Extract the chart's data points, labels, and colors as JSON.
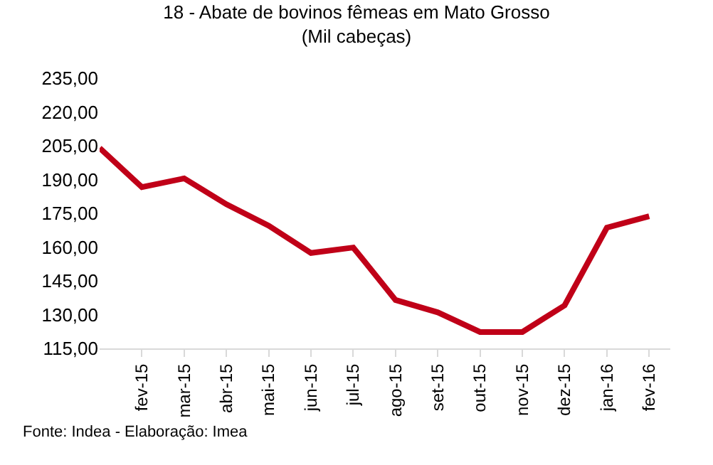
{
  "chart_data": {
    "type": "line",
    "title": "18 - Abate de bovinos fêmeas em Mato Grosso (Mil cabeças)",
    "categories": [
      null,
      "fev-15",
      "mar-15",
      "abr-15",
      "mai-15",
      "jun-15",
      "jul-15",
      "ago-15",
      "set-15",
      "out-15",
      "nov-15",
      "dez-15",
      "jan-16",
      "fev-16"
    ],
    "series": [
      {
        "color": "#c00018",
        "values": [
          204,
          186.6,
          190.5,
          179,
          169.5,
          157.4,
          159.8,
          136.5,
          131,
          122.3,
          122.3,
          134.1,
          168.6,
          173.7
        ]
      }
    ],
    "ylim": [
      115,
      235
    ],
    "yticks": [
      {
        "value": 115,
        "label": "115,00"
      },
      {
        "value": 130,
        "label": "130,00"
      },
      {
        "value": 145,
        "label": "145,00"
      },
      {
        "value": 160,
        "label": "160,00"
      },
      {
        "value": 175,
        "label": "175,00"
      },
      {
        "value": 190,
        "label": "190,00"
      },
      {
        "value": 205,
        "label": "205,00"
      },
      {
        "value": 220,
        "label": "220,00"
      },
      {
        "value": 235,
        "label": "235,00"
      }
    ],
    "marker": "none",
    "line_style": "solid",
    "annotations": [
      "Fonte: Indea - Elaboração: Imea"
    ]
  }
}
